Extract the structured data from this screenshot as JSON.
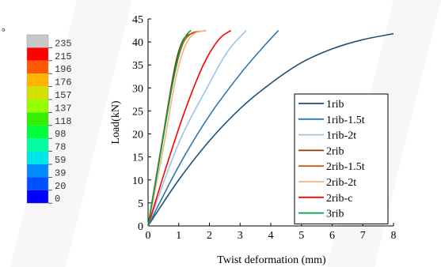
{
  "contour_legend": {
    "symbol": "°",
    "labels": [
      "235",
      "215",
      "196",
      "176",
      "157",
      "137",
      "118",
      "98",
      "78",
      "59",
      "39",
      "20",
      "0"
    ],
    "colors": [
      "#c8c8c8",
      "#ff0000",
      "#ff5a00",
      "#ffb400",
      "#d2e100",
      "#96ff00",
      "#32f000",
      "#00ff3c",
      "#00ffa0",
      "#00e6e6",
      "#008cff",
      "#0050ff",
      "#0000ff"
    ]
  },
  "chart_data": {
    "type": "line",
    "xlabel": "Twist deformation (mm)",
    "ylabel": "Load(kN)",
    "xlim": [
      0,
      8
    ],
    "ylim": [
      0,
      45
    ],
    "xticks": [
      "0",
      "1",
      "2",
      "3",
      "4",
      "5",
      "6",
      "7",
      "8"
    ],
    "yticks": [
      "0",
      "5",
      "10",
      "15",
      "20",
      "25",
      "30",
      "35",
      "40",
      "45"
    ],
    "grid": false,
    "legend_position": "bottom-right",
    "series": [
      {
        "name": "1rib",
        "color": "#1f4e79",
        "points": [
          [
            0,
            0
          ],
          [
            1,
            10
          ],
          [
            2,
            18.5
          ],
          [
            3,
            25.5
          ],
          [
            4,
            31
          ],
          [
            5,
            35.5
          ],
          [
            6,
            38.5
          ],
          [
            7,
            40.5
          ],
          [
            8,
            41.8
          ]
        ]
      },
      {
        "name": "1rib-1.5t",
        "color": "#2e75b6",
        "points": [
          [
            0,
            0
          ],
          [
            1,
            13
          ],
          [
            2,
            24
          ],
          [
            3,
            33
          ],
          [
            3.7,
            38.5
          ],
          [
            4.25,
            42.5
          ]
        ]
      },
      {
        "name": "1rib-2t",
        "color": "#9dc3e6",
        "points": [
          [
            0,
            0
          ],
          [
            1,
            18
          ],
          [
            2,
            31
          ],
          [
            2.6,
            38
          ],
          [
            3.2,
            42.5
          ]
        ]
      },
      {
        "name": "2rib",
        "color": "#843c0c",
        "points": [
          [
            0,
            0
          ],
          [
            0.4,
            16
          ],
          [
            0.8,
            32
          ],
          [
            1,
            38
          ],
          [
            1.2,
            41
          ],
          [
            1.5,
            42
          ],
          [
            1.7,
            42.3
          ]
        ]
      },
      {
        "name": "2rib-1.5t",
        "color": "#c55a11",
        "points": [
          [
            0,
            0
          ],
          [
            0.4,
            16
          ],
          [
            0.8,
            31
          ],
          [
            1.1,
            39
          ],
          [
            1.4,
            41.8
          ],
          [
            1.7,
            42.3
          ],
          [
            1.9,
            42.5
          ]
        ]
      },
      {
        "name": "2rib-2t",
        "color": "#f4b183",
        "points": [
          [
            0,
            0
          ],
          [
            0.5,
            17
          ],
          [
            0.9,
            32
          ],
          [
            1.2,
            39
          ],
          [
            1.5,
            41.8
          ],
          [
            1.9,
            42.5
          ]
        ]
      },
      {
        "name": "2rib-c",
        "color": "#ff0000",
        "points": [
          [
            0,
            0
          ],
          [
            0.6,
            13
          ],
          [
            1.2,
            25
          ],
          [
            1.8,
            35
          ],
          [
            2.3,
            40.5
          ],
          [
            2.7,
            42.5
          ]
        ]
      },
      {
        "name": "3rib",
        "color": "#00a04a",
        "points": [
          [
            0,
            0
          ],
          [
            0.4,
            15.5
          ],
          [
            0.8,
            31
          ],
          [
            1.05,
            38.5
          ],
          [
            1.25,
            41.5
          ],
          [
            1.4,
            42.5
          ]
        ]
      }
    ]
  }
}
